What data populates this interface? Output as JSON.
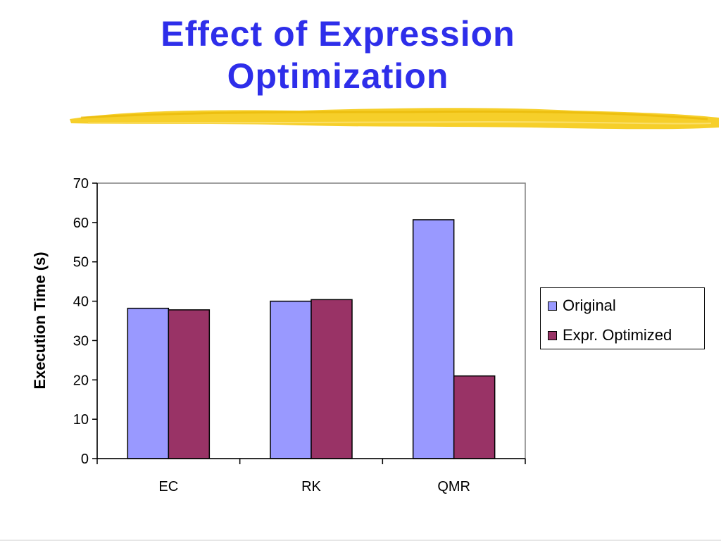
{
  "slide": {
    "title_line1": "Effect of Expression",
    "title_line2": "Optimization"
  },
  "colors": {
    "title": "#2e2eea",
    "highlighter": "#f5cc1f",
    "series_original": "#9999ff",
    "series_optimized": "#993366"
  },
  "chart_data": {
    "type": "bar",
    "categories": [
      "EC",
      "RK",
      "QMR"
    ],
    "series": [
      {
        "name": "Original",
        "values": [
          38.2,
          40.0,
          60.7
        ]
      },
      {
        "name": "Expr. Optimized",
        "values": [
          37.8,
          40.4,
          21.0
        ]
      }
    ],
    "ylabel": "Execution Time (s)",
    "xlabel": "",
    "ylim": [
      0,
      70
    ],
    "yticks": [
      0,
      10,
      20,
      30,
      40,
      50,
      60,
      70
    ],
    "grid": false,
    "legend_position": "right"
  }
}
